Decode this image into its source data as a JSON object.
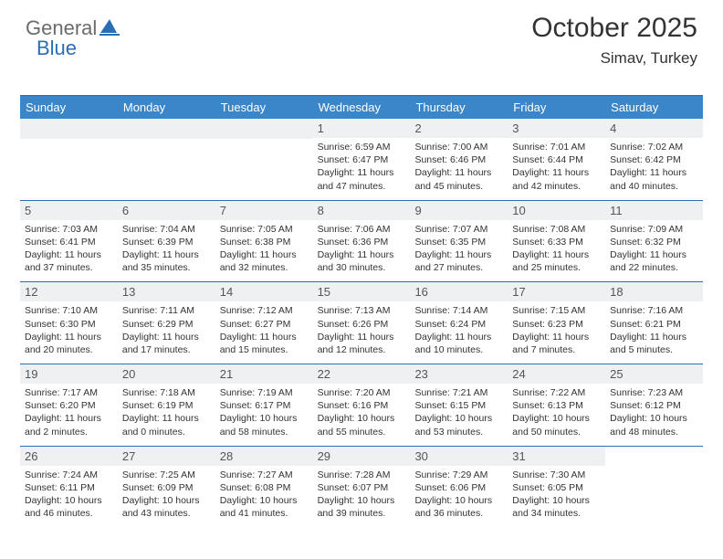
{
  "logo": {
    "text1": "General",
    "text2": "Blue"
  },
  "header": {
    "title": "October 2025",
    "location": "Simav, Turkey"
  },
  "colors": {
    "header_bg": "#3a86c8",
    "header_text": "#ffffff",
    "border": "#2a6fb5",
    "daynum_bg": "#eef0f2",
    "text": "#333333",
    "logo_gray": "#6b6b6b",
    "logo_blue": "#2a6fb5"
  },
  "days_of_week": [
    "Sunday",
    "Monday",
    "Tuesday",
    "Wednesday",
    "Thursday",
    "Friday",
    "Saturday"
  ],
  "weeks": [
    [
      null,
      null,
      null,
      {
        "n": "1",
        "sr": "6:59 AM",
        "ss": "6:47 PM",
        "dl": "11 hours and 47 minutes."
      },
      {
        "n": "2",
        "sr": "7:00 AM",
        "ss": "6:46 PM",
        "dl": "11 hours and 45 minutes."
      },
      {
        "n": "3",
        "sr": "7:01 AM",
        "ss": "6:44 PM",
        "dl": "11 hours and 42 minutes."
      },
      {
        "n": "4",
        "sr": "7:02 AM",
        "ss": "6:42 PM",
        "dl": "11 hours and 40 minutes."
      }
    ],
    [
      {
        "n": "5",
        "sr": "7:03 AM",
        "ss": "6:41 PM",
        "dl": "11 hours and 37 minutes."
      },
      {
        "n": "6",
        "sr": "7:04 AM",
        "ss": "6:39 PM",
        "dl": "11 hours and 35 minutes."
      },
      {
        "n": "7",
        "sr": "7:05 AM",
        "ss": "6:38 PM",
        "dl": "11 hours and 32 minutes."
      },
      {
        "n": "8",
        "sr": "7:06 AM",
        "ss": "6:36 PM",
        "dl": "11 hours and 30 minutes."
      },
      {
        "n": "9",
        "sr": "7:07 AM",
        "ss": "6:35 PM",
        "dl": "11 hours and 27 minutes."
      },
      {
        "n": "10",
        "sr": "7:08 AM",
        "ss": "6:33 PM",
        "dl": "11 hours and 25 minutes."
      },
      {
        "n": "11",
        "sr": "7:09 AM",
        "ss": "6:32 PM",
        "dl": "11 hours and 22 minutes."
      }
    ],
    [
      {
        "n": "12",
        "sr": "7:10 AM",
        "ss": "6:30 PM",
        "dl": "11 hours and 20 minutes."
      },
      {
        "n": "13",
        "sr": "7:11 AM",
        "ss": "6:29 PM",
        "dl": "11 hours and 17 minutes."
      },
      {
        "n": "14",
        "sr": "7:12 AM",
        "ss": "6:27 PM",
        "dl": "11 hours and 15 minutes."
      },
      {
        "n": "15",
        "sr": "7:13 AM",
        "ss": "6:26 PM",
        "dl": "11 hours and 12 minutes."
      },
      {
        "n": "16",
        "sr": "7:14 AM",
        "ss": "6:24 PM",
        "dl": "11 hours and 10 minutes."
      },
      {
        "n": "17",
        "sr": "7:15 AM",
        "ss": "6:23 PM",
        "dl": "11 hours and 7 minutes."
      },
      {
        "n": "18",
        "sr": "7:16 AM",
        "ss": "6:21 PM",
        "dl": "11 hours and 5 minutes."
      }
    ],
    [
      {
        "n": "19",
        "sr": "7:17 AM",
        "ss": "6:20 PM",
        "dl": "11 hours and 2 minutes."
      },
      {
        "n": "20",
        "sr": "7:18 AM",
        "ss": "6:19 PM",
        "dl": "11 hours and 0 minutes."
      },
      {
        "n": "21",
        "sr": "7:19 AM",
        "ss": "6:17 PM",
        "dl": "10 hours and 58 minutes."
      },
      {
        "n": "22",
        "sr": "7:20 AM",
        "ss": "6:16 PM",
        "dl": "10 hours and 55 minutes."
      },
      {
        "n": "23",
        "sr": "7:21 AM",
        "ss": "6:15 PM",
        "dl": "10 hours and 53 minutes."
      },
      {
        "n": "24",
        "sr": "7:22 AM",
        "ss": "6:13 PM",
        "dl": "10 hours and 50 minutes."
      },
      {
        "n": "25",
        "sr": "7:23 AM",
        "ss": "6:12 PM",
        "dl": "10 hours and 48 minutes."
      }
    ],
    [
      {
        "n": "26",
        "sr": "7:24 AM",
        "ss": "6:11 PM",
        "dl": "10 hours and 46 minutes."
      },
      {
        "n": "27",
        "sr": "7:25 AM",
        "ss": "6:09 PM",
        "dl": "10 hours and 43 minutes."
      },
      {
        "n": "28",
        "sr": "7:27 AM",
        "ss": "6:08 PM",
        "dl": "10 hours and 41 minutes."
      },
      {
        "n": "29",
        "sr": "7:28 AM",
        "ss": "6:07 PM",
        "dl": "10 hours and 39 minutes."
      },
      {
        "n": "30",
        "sr": "7:29 AM",
        "ss": "6:06 PM",
        "dl": "10 hours and 36 minutes."
      },
      {
        "n": "31",
        "sr": "7:30 AM",
        "ss": "6:05 PM",
        "dl": "10 hours and 34 minutes."
      },
      null
    ]
  ],
  "labels": {
    "sunrise": "Sunrise:",
    "sunset": "Sunset:",
    "daylight": "Daylight:"
  }
}
